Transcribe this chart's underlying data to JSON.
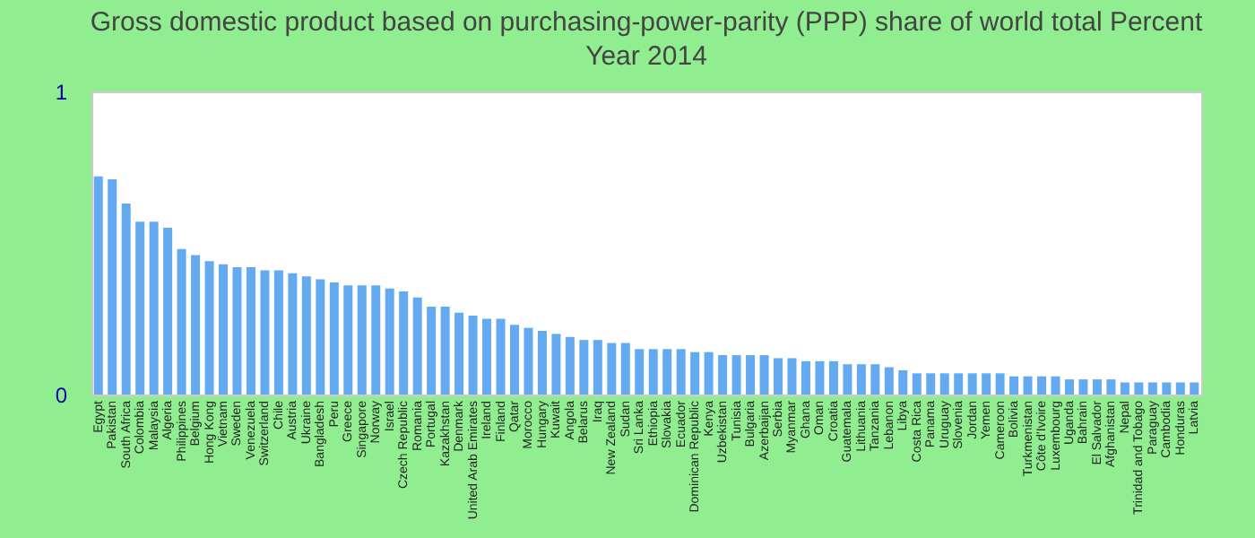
{
  "chart_data": {
    "type": "bar",
    "title": "Gross domestic product based on purchasing-power-parity (PPP) share of world total  Percent",
    "subtitle": "Year 2014",
    "categories": [
      "Egypt",
      "Pakistan",
      "South Africa",
      "Colombia",
      "Malaysia",
      "Algeria",
      "Philippines",
      "Belgium",
      "Hong Kong",
      "Vietnam",
      "Sweden",
      "Venezuela",
      "Switzerland",
      "Chile",
      "Austria",
      "Ukraine",
      "Bangladesh",
      "Peru",
      "Greece",
      "Singapore",
      "Norway",
      "Israel",
      "Czech Republic",
      "Romania",
      "Portugal",
      "Kazakhstan",
      "Denmark",
      "United Arab Emirates",
      "Ireland",
      "Finland",
      "Qatar",
      "Morocco",
      "Hungary",
      "Kuwait",
      "Angola",
      "Belarus",
      "Iraq",
      "New Zealand",
      "Sudan",
      "Sri Lanka",
      "Ethiopia",
      "Slovakia",
      "Ecuador",
      "Dominican Republic",
      "Kenya",
      "Uzbekistan",
      "Tunisia",
      "Bulgaria",
      "Azerbaijan",
      "Serbia",
      "Myanmar",
      "Ghana",
      "Oman",
      "Croatia",
      "Guatemala",
      "Lithuania",
      "Tanzania",
      "Lebanon",
      "Libya",
      "Costa Rica",
      "Panama",
      "Uruguay",
      "Slovenia",
      "Jordan",
      "Yemen",
      "Cameroon",
      "Bolivia",
      "Turkmenistan",
      "Côte d'Ivoire",
      "Luxembourg",
      "Uganda",
      "Bahrain",
      "El Salvador",
      "Afghanistan",
      "Nepal",
      "Trinidad and Tobago",
      "Paraguay",
      "Cambodia",
      "Honduras",
      "Latvia"
    ],
    "values": [
      0.72,
      0.71,
      0.63,
      0.57,
      0.57,
      0.55,
      0.48,
      0.46,
      0.44,
      0.43,
      0.42,
      0.42,
      0.41,
      0.41,
      0.4,
      0.39,
      0.38,
      0.37,
      0.36,
      0.36,
      0.36,
      0.35,
      0.34,
      0.32,
      0.29,
      0.29,
      0.27,
      0.26,
      0.25,
      0.25,
      0.23,
      0.22,
      0.21,
      0.2,
      0.19,
      0.18,
      0.18,
      0.17,
      0.17,
      0.15,
      0.15,
      0.15,
      0.15,
      0.14,
      0.14,
      0.13,
      0.13,
      0.13,
      0.13,
      0.12,
      0.12,
      0.11,
      0.11,
      0.11,
      0.1,
      0.1,
      0.1,
      0.09,
      0.08,
      0.07,
      0.07,
      0.07,
      0.07,
      0.07,
      0.07,
      0.07,
      0.06,
      0.06,
      0.06,
      0.06,
      0.05,
      0.05,
      0.05,
      0.05,
      0.04,
      0.04,
      0.04,
      0.04,
      0.04,
      0.04
    ],
    "color": "#63aaf0",
    "ylim": [
      0,
      1
    ],
    "yticks": [
      0,
      1
    ]
  }
}
